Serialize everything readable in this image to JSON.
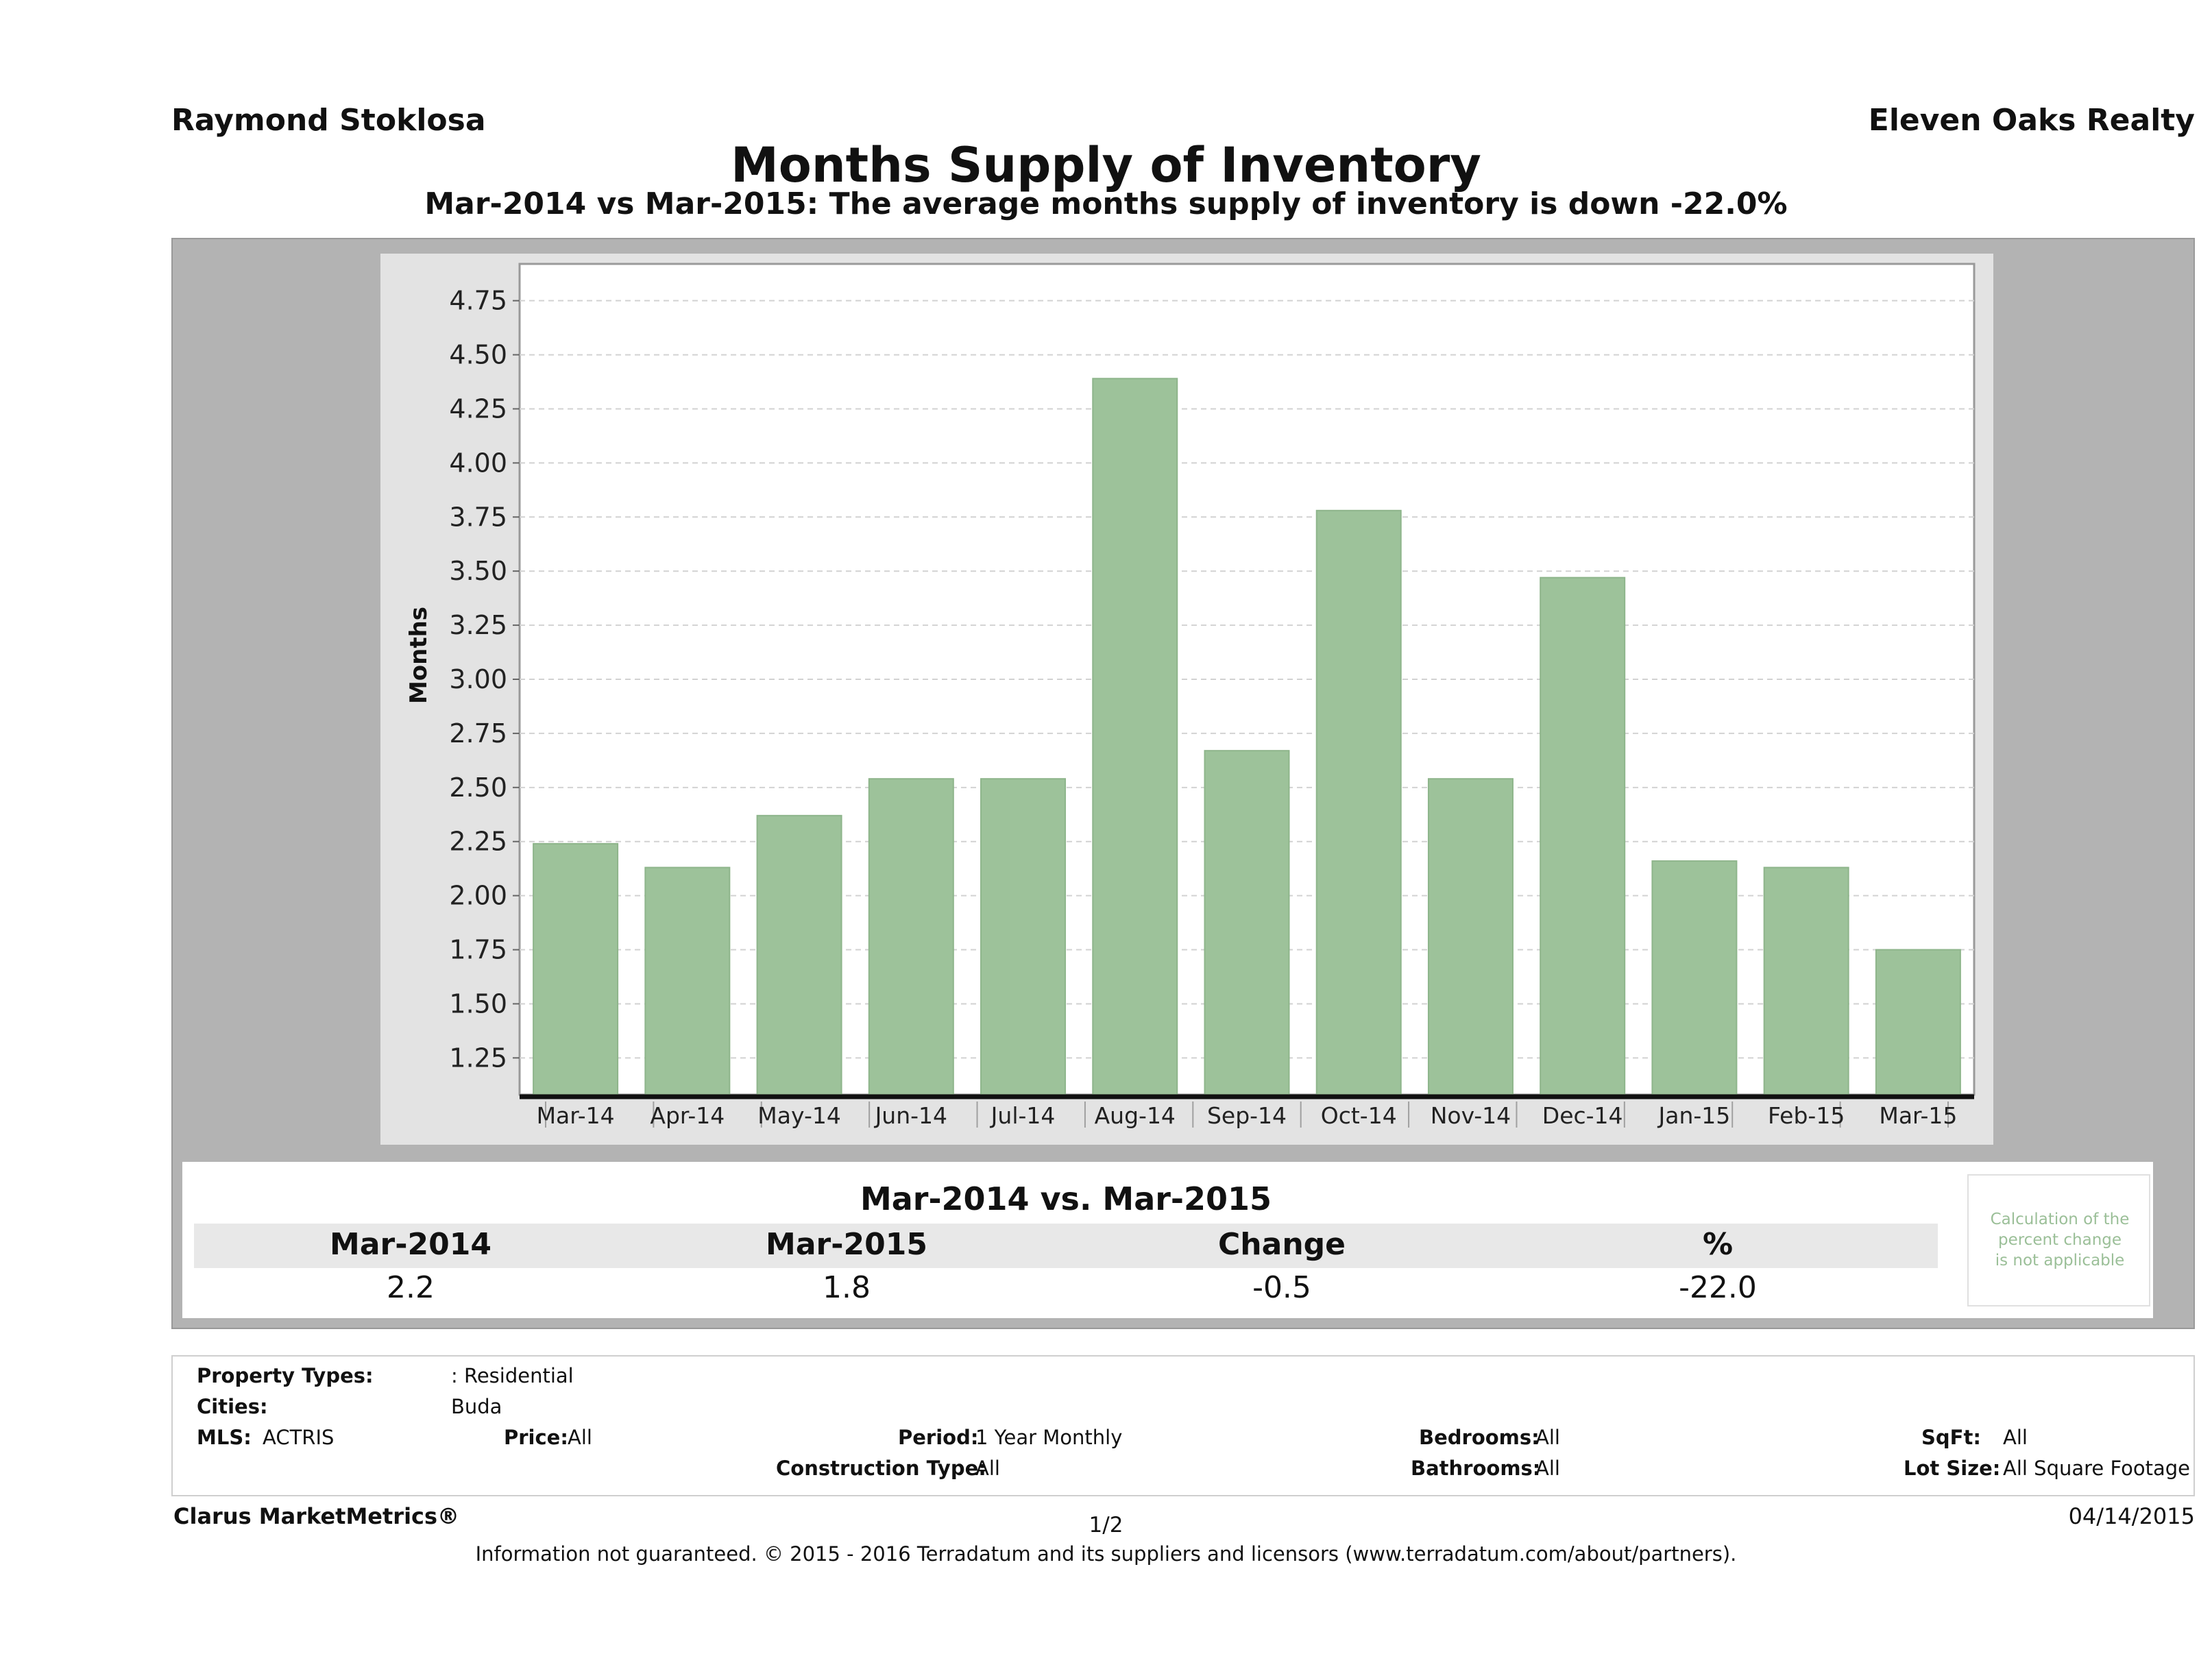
{
  "header": {
    "agent": "Raymond Stoklosa",
    "company": "Eleven Oaks Realty",
    "title": "Months Supply of Inventory",
    "subtitle": "Mar-2014 vs Mar-2015: The average months supply of inventory is down -22.0%"
  },
  "chart_data": {
    "type": "bar",
    "categories": [
      "Mar-14",
      "Apr-14",
      "May-14",
      "Jun-14",
      "Jul-14",
      "Aug-14",
      "Sep-14",
      "Oct-14",
      "Nov-14",
      "Dec-14",
      "Jan-15",
      "Feb-15",
      "Mar-15"
    ],
    "values": [
      2.24,
      2.13,
      2.37,
      2.54,
      2.54,
      4.39,
      2.67,
      3.78,
      2.54,
      3.47,
      2.16,
      2.13,
      1.75
    ],
    "ylabel": "Months",
    "xlabel": "",
    "ylim": [
      1.08,
      4.92
    ],
    "yticks": [
      "1.25",
      "1.50",
      "1.75",
      "2.00",
      "2.25",
      "2.50",
      "2.75",
      "3.00",
      "3.25",
      "3.50",
      "3.75",
      "4.00",
      "4.25",
      "4.50",
      "4.75"
    ],
    "grid": true,
    "bar_color": "#9dc29a"
  },
  "comparison": {
    "title": "Mar-2014 vs. Mar-2015",
    "headers": [
      "Mar-2014",
      "Mar-2015",
      "Change",
      "%"
    ],
    "values": [
      "2.2",
      "1.8",
      "-0.5",
      "-22.0"
    ],
    "note_lines": [
      "Calculation of the",
      "percent change",
      "is not applicable"
    ]
  },
  "criteria": {
    "property_types_label": "Property Types:",
    "property_types_value": ": Residential",
    "cities_label": "Cities:",
    "cities_value": "Buda",
    "mls_label": "MLS:",
    "mls_value": "ACTRIS",
    "price_label": "Price:",
    "price_value": "All",
    "period_label": "Period:",
    "period_value": "1 Year Monthly",
    "construction_label": "Construction Type:",
    "construction_value": "All",
    "bedrooms_label": "Bedrooms:",
    "bedrooms_value": "All",
    "bathrooms_label": "Bathrooms:",
    "bathrooms_value": "All",
    "sqft_label": "SqFt:",
    "sqft_value": "All",
    "lotsize_label": "Lot Size:",
    "lotsize_value": "All Square Footage"
  },
  "footer": {
    "brand": "Clarus MarketMetrics®",
    "page": "1/2",
    "date": "04/14/2015",
    "disclaimer": "Information not guaranteed. © 2015 - 2016 Terradatum and its suppliers and licensors (www.terradatum.com/about/partners)."
  }
}
